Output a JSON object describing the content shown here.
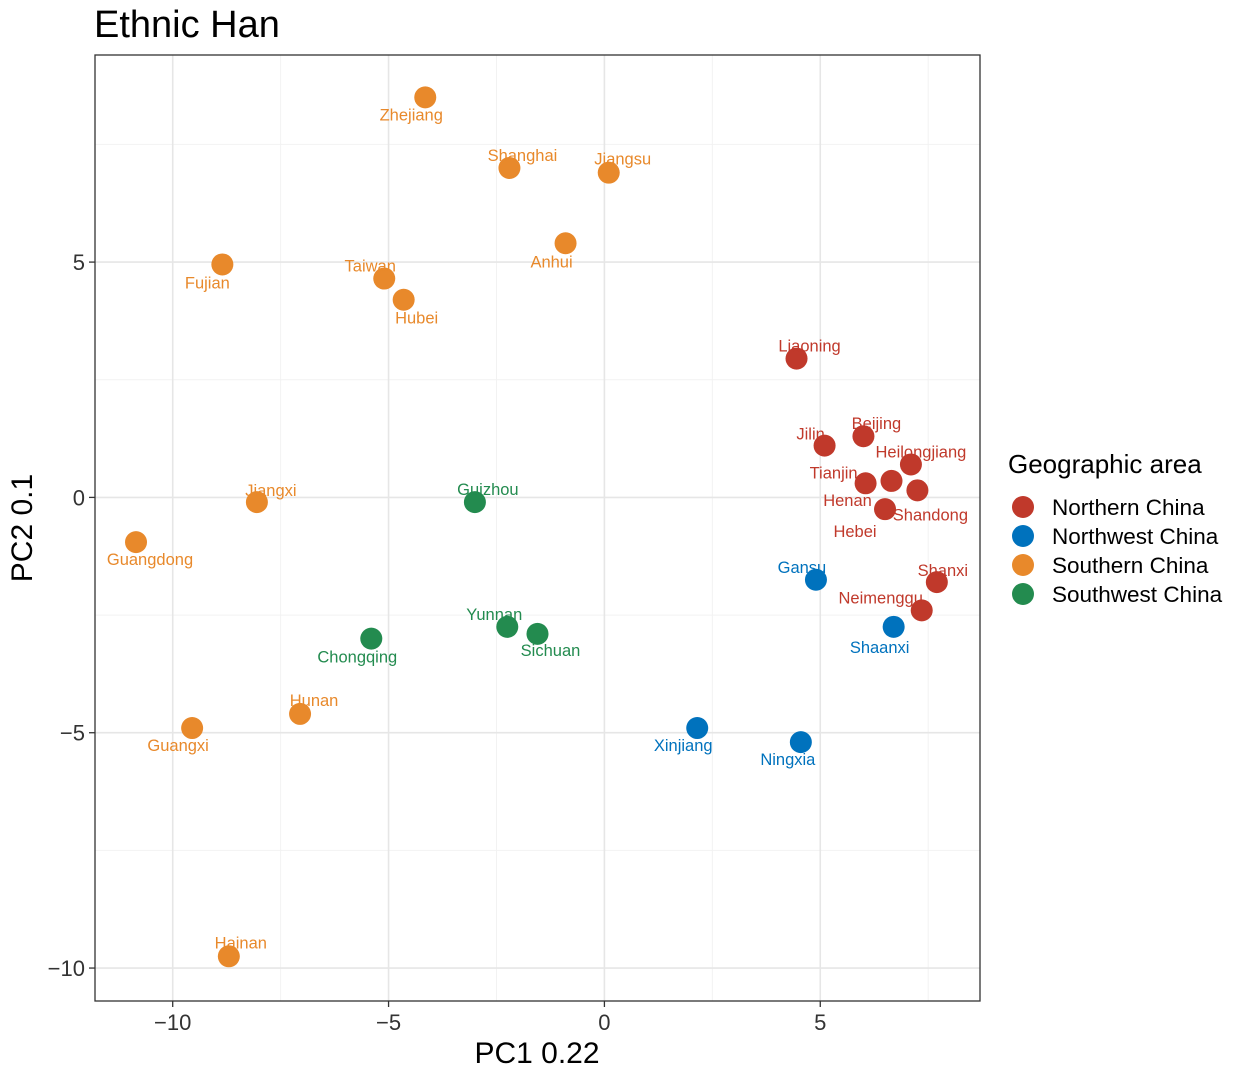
{
  "chart_data": {
    "type": "scatter",
    "title": "Ethnic Han",
    "xlabel": "PC1  0.22",
    "ylabel": "PC2  0.1",
    "xlim": [
      -11.8,
      8.7
    ],
    "ylim": [
      -10.7,
      9.4
    ],
    "xticks": [
      -10,
      -5,
      0,
      5
    ],
    "yticks": [
      -10,
      -5,
      0,
      5
    ],
    "xtick_labels": [
      "−10",
      "−5",
      "0",
      "5"
    ],
    "ytick_labels": [
      "−10",
      "−5",
      "0",
      "5"
    ],
    "grid": true,
    "legend": {
      "title": "Geographic area",
      "position": "right",
      "entries": [
        {
          "name": "Northern China",
          "color": "#C0392B"
        },
        {
          "name": "Northwest China",
          "color": "#0072BD"
        },
        {
          "name": "Southern China",
          "color": "#E8892B"
        },
        {
          "name": "Southwest China",
          "color": "#238B4F"
        }
      ]
    },
    "series": [
      {
        "name": "Northern China",
        "color": "#C0392B",
        "points": [
          {
            "label": "Liaoning",
            "x": 4.45,
            "y": 2.95
          },
          {
            "label": "Jilin",
            "x": 5.1,
            "y": 1.1
          },
          {
            "label": "Beijing",
            "x": 6.0,
            "y": 1.3
          },
          {
            "label": "Heilongjiang",
            "x": 7.1,
            "y": 0.7
          },
          {
            "label": "Tianjin",
            "x": 6.05,
            "y": 0.3
          },
          {
            "label": "Henan",
            "x": 6.65,
            "y": 0.35
          },
          {
            "label": "Shandong",
            "x": 7.25,
            "y": 0.15
          },
          {
            "label": "Hebei",
            "x": 6.5,
            "y": -0.25
          },
          {
            "label": "Shanxi",
            "x": 7.7,
            "y": -1.8
          },
          {
            "label": "Neimenggu",
            "x": 7.35,
            "y": -2.4
          }
        ]
      },
      {
        "name": "Northwest China",
        "color": "#0072BD",
        "points": [
          {
            "label": "Gansu",
            "x": 4.9,
            "y": -1.75
          },
          {
            "label": "Shaanxi",
            "x": 6.7,
            "y": -2.75
          },
          {
            "label": "Xinjiang",
            "x": 2.15,
            "y": -4.9
          },
          {
            "label": "Ningxia",
            "x": 4.55,
            "y": -5.2
          }
        ]
      },
      {
        "name": "Southern China",
        "color": "#E8892B",
        "points": [
          {
            "label": "Zhejiang",
            "x": -4.15,
            "y": 8.5
          },
          {
            "label": "Shanghai",
            "x": -2.2,
            "y": 7.0
          },
          {
            "label": "Jiangsu",
            "x": 0.1,
            "y": 6.9
          },
          {
            "label": "Anhui",
            "x": -0.9,
            "y": 5.4
          },
          {
            "label": "Fujian",
            "x": -8.85,
            "y": 4.95
          },
          {
            "label": "Taiwan",
            "x": -5.1,
            "y": 4.65
          },
          {
            "label": "Hubei",
            "x": -4.65,
            "y": 4.2
          },
          {
            "label": "Jiangxi",
            "x": -8.05,
            "y": -0.1
          },
          {
            "label": "Guangdong",
            "x": -10.85,
            "y": -0.95
          },
          {
            "label": "Hunan",
            "x": -7.05,
            "y": -4.6
          },
          {
            "label": "Guangxi",
            "x": -9.55,
            "y": -4.9
          },
          {
            "label": "Hainan",
            "x": -8.7,
            "y": -9.75
          }
        ]
      },
      {
        "name": "Southwest China",
        "color": "#238B4F",
        "points": [
          {
            "label": "Guizhou",
            "x": -3.0,
            "y": -0.1
          },
          {
            "label": "Yunnan",
            "x": -2.25,
            "y": -2.75
          },
          {
            "label": "Sichuan",
            "x": -1.55,
            "y": -2.9
          },
          {
            "label": "Chongqing",
            "x": -5.4,
            "y": -3.0
          }
        ]
      }
    ]
  }
}
